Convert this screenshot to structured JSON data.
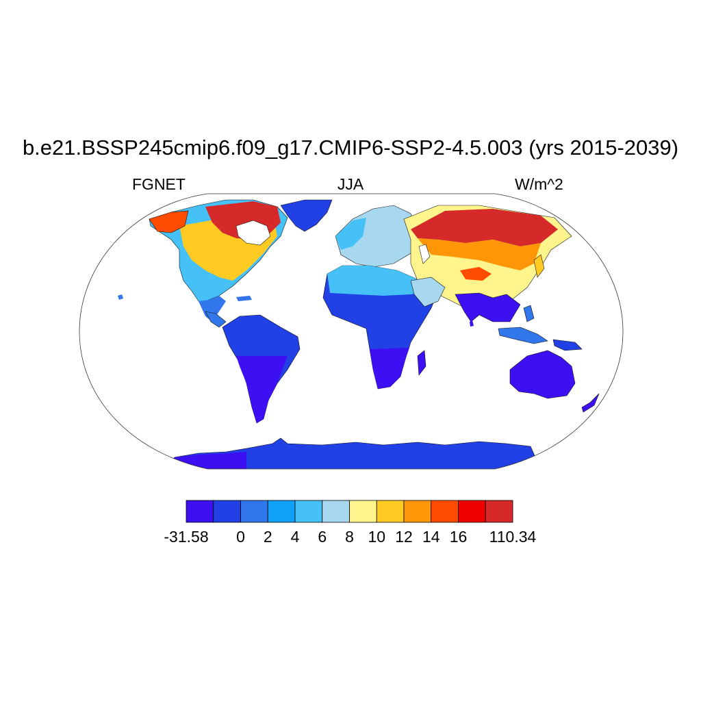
{
  "title": "b.e21.BSSP245cmip6.f09_g17.CMIP6-SSP2-4.5.003 (yrs 2015-2039)",
  "subtitle_left": "FGNET",
  "subtitle_center": "JJA",
  "subtitle_right": "W/m^2",
  "colorbar": {
    "colors": [
      "#3c10f3",
      "#2140e6",
      "#3276eb",
      "#10a0f8",
      "#45c1f8",
      "#a8d8f0",
      "#fff58c",
      "#ffcb22",
      "#ff9608",
      "#ff4c00",
      "#ee0000",
      "#d62a2a"
    ],
    "labels": [
      "-31.58",
      "0",
      "2",
      "4",
      "6",
      "8",
      "10",
      "12",
      "14",
      "16",
      "110.34"
    ]
  }
}
